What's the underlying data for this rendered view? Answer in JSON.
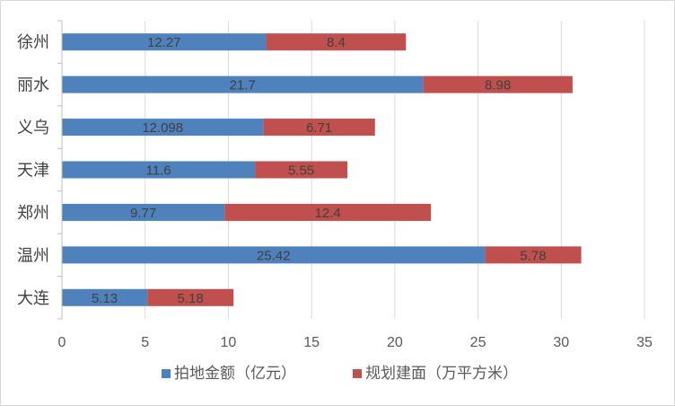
{
  "chart_data": {
    "type": "bar",
    "orientation": "horizontal",
    "stacked": true,
    "categories": [
      "徐州",
      "丽水",
      "义乌",
      "天津",
      "郑州",
      "温州",
      "大连"
    ],
    "series": [
      {
        "name": "拍地金额（亿元）",
        "color": "#4f81bd",
        "values": [
          12.27,
          21.7,
          12.098,
          11.6,
          9.77,
          25.42,
          5.13
        ],
        "labels": [
          "12.27",
          "21.7",
          "12.098",
          "11.6",
          "9.77",
          "25.42",
          "5.13"
        ]
      },
      {
        "name": "规划建面（万平方米）",
        "color": "#c0504d",
        "values": [
          8.4,
          8.98,
          6.71,
          5.55,
          12.4,
          5.78,
          5.18
        ],
        "labels": [
          "8.4",
          "8.98",
          "6.71",
          "5.55",
          "12.4",
          "5.78",
          "5.18"
        ]
      }
    ],
    "xlim": [
      0,
      35
    ],
    "xticks": [
      0,
      5,
      10,
      15,
      20,
      25,
      30,
      35
    ],
    "grid": true,
    "legend_position": "bottom",
    "title": "",
    "xlabel": "",
    "ylabel": ""
  }
}
